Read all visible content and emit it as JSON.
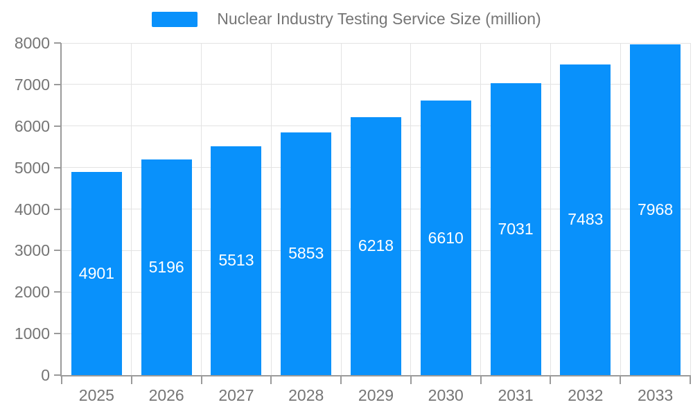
{
  "legend": {
    "label": "Nuclear Industry Testing Service Size (million)"
  },
  "chart_data": {
    "type": "bar",
    "title": "Nuclear Industry Testing Service Size (million)",
    "series_name": "Nuclear Industry Testing Service Size (million)",
    "categories": [
      "2025",
      "2026",
      "2027",
      "2028",
      "2029",
      "2030",
      "2031",
      "2032",
      "2033"
    ],
    "values": [
      4901,
      5196,
      5513,
      5853,
      6218,
      6610,
      7031,
      7483,
      7968
    ],
    "value_labels_visible": true,
    "xlabel": "",
    "ylabel": "",
    "ylim": [
      0,
      8000
    ],
    "ytick_interval": 1000,
    "yticks": [
      0,
      1000,
      2000,
      3000,
      4000,
      5000,
      6000,
      7000,
      8000
    ],
    "grid": true,
    "legend_position": "top-center",
    "colors": {
      "bar": "#0991fb",
      "value_label": "#ffffff",
      "axis_text": "#757575",
      "axis_line": "#9a9a9a",
      "gridline": "#e3e3e3",
      "background": "#ffffff"
    }
  }
}
